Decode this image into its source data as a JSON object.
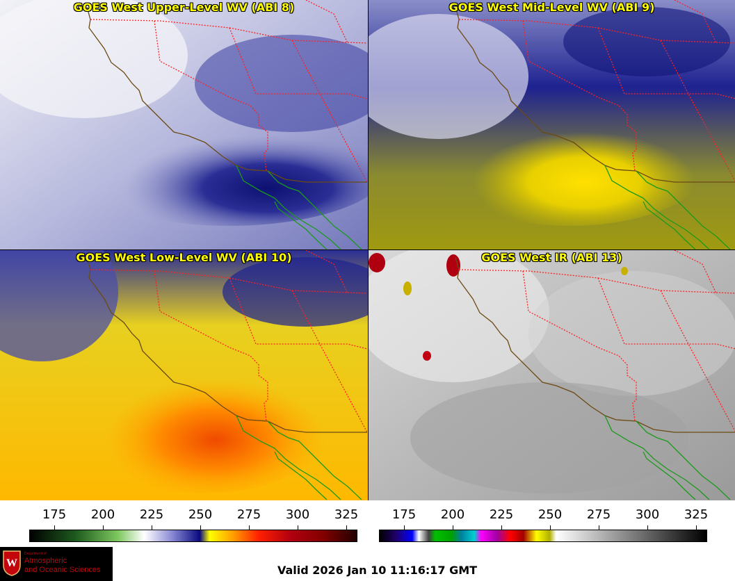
{
  "panels": [
    {
      "title": "GOES West Upper-Level WV (ABI 8)",
      "style": "wv_upper"
    },
    {
      "title": "GOES West Mid-Level WV (ABI 9)",
      "style": "wv_mid"
    },
    {
      "title": "GOES West Low-Level WV (ABI 10)",
      "style": "wv_low"
    },
    {
      "title": "GOES West IR (ABI 13)",
      "style": "ir"
    }
  ],
  "colorbars": [
    {
      "name": "water-vapor",
      "ticks": [
        "175",
        "200",
        "225",
        "250",
        "275",
        "300",
        "325"
      ]
    },
    {
      "name": "infrared",
      "ticks": [
        "175",
        "200",
        "225",
        "250",
        "275",
        "300",
        "325"
      ]
    }
  ],
  "logo": {
    "dept": "Department of",
    "line1": "Atmospheric",
    "line2": "and Oceanic Sciences",
    "colors": {
      "bg": "#000000",
      "text": "#c5050c"
    }
  },
  "valid_text": "Valid 2026 Jan 10 11:16:17 GMT",
  "map_colors": {
    "coast": "#6b4a12",
    "state_border": "#ff2020",
    "mexico": "#1a9a1a"
  }
}
